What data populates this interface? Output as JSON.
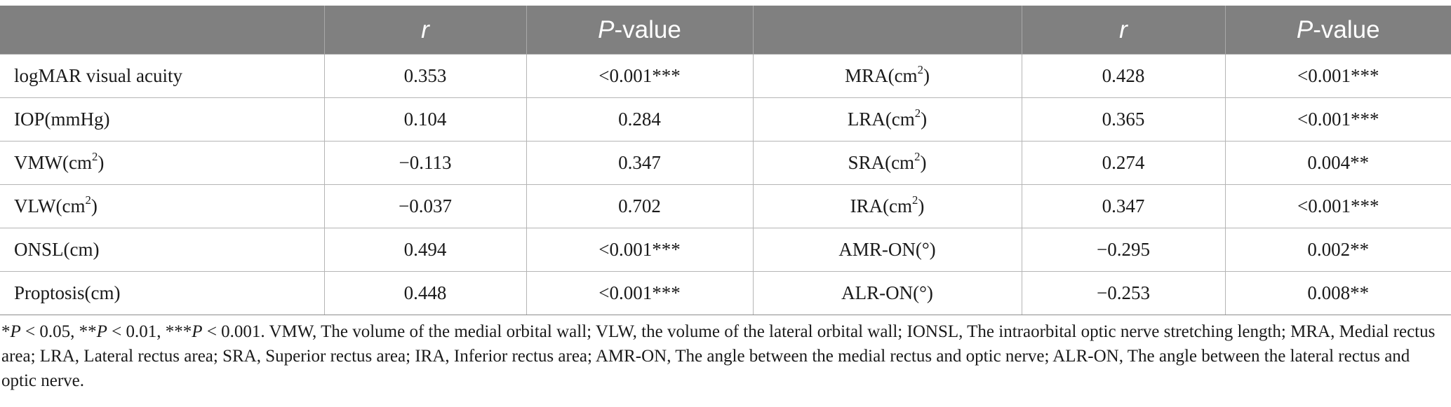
{
  "table": {
    "headers": [
      "",
      "r",
      "P-value",
      "",
      "r",
      "P-value"
    ],
    "rows": [
      {
        "var1": "logMAR visual acuity",
        "var1_unit": "",
        "var1_sup": "",
        "var1_close": "",
        "r1": "0.353",
        "p1": "<0.001***",
        "var2": "MRA",
        "var2_unit": "(cm",
        "var2_sup": "2",
        "var2_close": ")",
        "r2": "0.428",
        "p2": "<0.001***"
      },
      {
        "var1": "IOP",
        "var1_unit": "(mmHg)",
        "var1_sup": "",
        "var1_close": "",
        "r1": "0.104",
        "p1": "0.284",
        "var2": "LRA",
        "var2_unit": "(cm",
        "var2_sup": "2",
        "var2_close": ")",
        "r2": "0.365",
        "p2": "<0.001***"
      },
      {
        "var1": "VMW",
        "var1_unit": "(cm",
        "var1_sup": "2",
        "var1_close": ")",
        "r1": "−0.113",
        "p1": "0.347",
        "var2": "SRA",
        "var2_unit": "(cm",
        "var2_sup": "2",
        "var2_close": ")",
        "r2": "0.274",
        "p2": "0.004**"
      },
      {
        "var1": "VLW",
        "var1_unit": "(cm",
        "var1_sup": "2",
        "var1_close": ")",
        "r1": "−0.037",
        "p1": "0.702",
        "var2": "IRA",
        "var2_unit": "(cm",
        "var2_sup": "2",
        "var2_close": ")",
        "r2": "0.347",
        "p2": "<0.001***"
      },
      {
        "var1": "ONSL",
        "var1_unit": "(cm)",
        "var1_sup": "",
        "var1_close": "",
        "r1": "0.494",
        "p1": "<0.001***",
        "var2": "AMR-ON",
        "var2_unit": "(°)",
        "var2_sup": "",
        "var2_close": "",
        "r2": "−0.295",
        "p2": "0.002**"
      },
      {
        "var1": "Proptosis",
        "var1_unit": "(cm)",
        "var1_sup": "",
        "var1_close": "",
        "r1": "0.448",
        "p1": "<0.001***",
        "var2": "ALR-ON",
        "var2_unit": "(°)",
        "var2_sup": "",
        "var2_close": "",
        "r2": "−0.253",
        "p2": "0.008**"
      }
    ]
  },
  "footnote": {
    "s1": "*",
    "p1": "P",
    "s2": " < 0.05, **",
    "p2": "P",
    "s3": " < 0.01, ***",
    "p3": "P",
    "s4": " < 0.001. VMW, The volume of the medial orbital wall; VLW, the volume of the lateral orbital wall; IONSL, The intraorbital optic nerve stretching length; MRA, Medial rectus area; LRA, Lateral rectus area; SRA, Superior rectus area; IRA, Inferior rectus area; AMR-ON, The angle between the medial rectus and optic nerve; ALR-ON, The angle between the lateral rectus and optic nerve."
  },
  "header_p_suffix": "-value"
}
